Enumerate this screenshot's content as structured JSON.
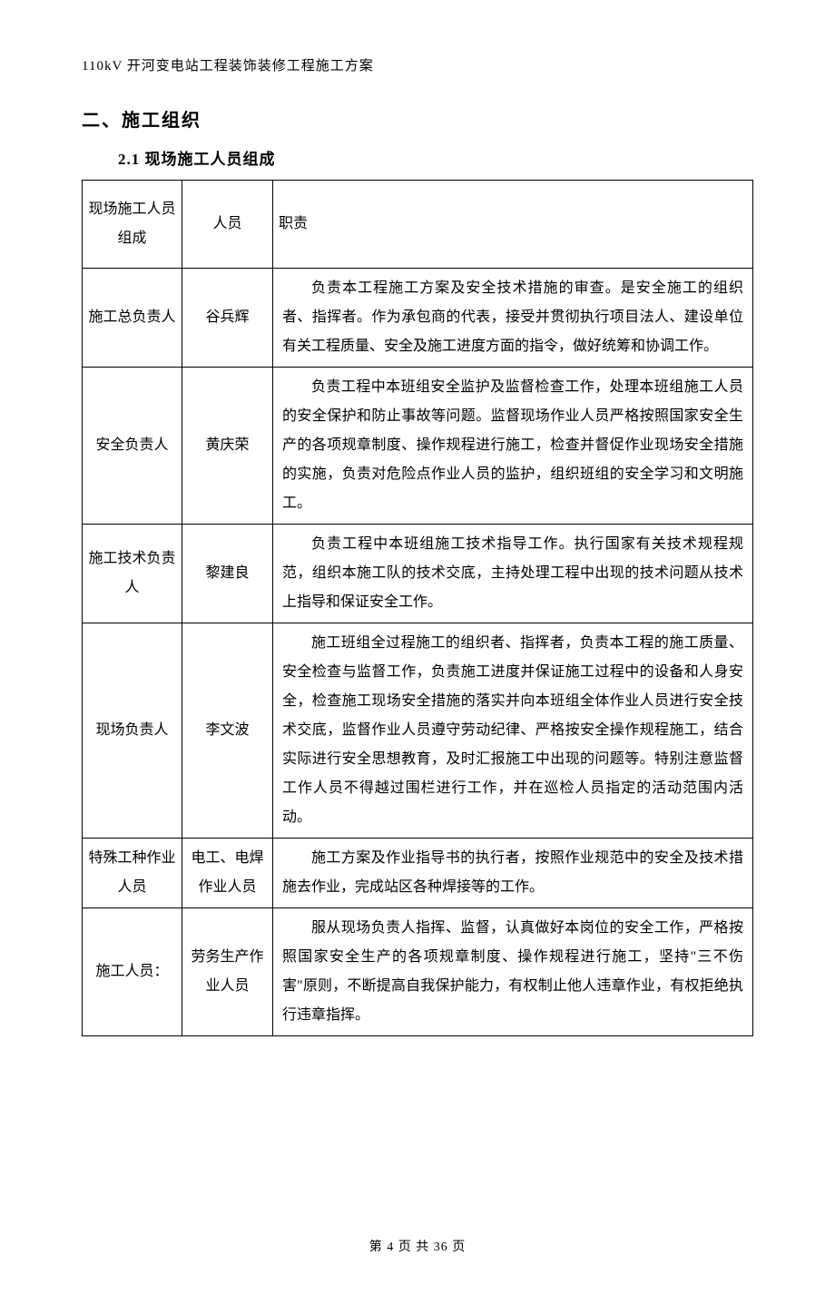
{
  "header": {
    "text": "110kV 开河变电站工程装饰装修工程施工方案"
  },
  "section": {
    "title": "二、施工组织",
    "subsection": "2.1 现场施工人员组成"
  },
  "table": {
    "headers": {
      "col1": "现场施工人员组成",
      "col2": "人员",
      "col3": "职责"
    },
    "rows": [
      {
        "role": "施工总负责人",
        "person": "谷兵辉",
        "duty": "负责本工程施工方案及安全技术措施的审查。是安全施工的组织者、指挥者。作为承包商的代表，接受并贯彻执行项目法人、建设单位有关工程质量、安全及施工进度方面的指令，做好统筹和协调工作。"
      },
      {
        "role": "安全负责人",
        "person": "黄庆荣",
        "duty": "负责工程中本班组安全监护及监督检查工作，处理本班组施工人员的安全保护和防止事故等问题。监督现场作业人员严格按照国家安全生产的各项规章制度、操作规程进行施工，检查并督促作业现场安全措施的实施，负责对危险点作业人员的监护，组织班组的安全学习和文明施工。"
      },
      {
        "role": "施工技术负责人",
        "person": "黎建良",
        "duty": "负责工程中本班组施工技术指导工作。执行国家有关技术规程规范，组织本施工队的技术交底，主持处理工程中出现的技术问题从技术上指导和保证安全工作。"
      },
      {
        "role": "现场负责人",
        "person": "李文波",
        "duty": "施工班组全过程施工的组织者、指挥者，负责本工程的施工质量、安全检查与监督工作，负责施工进度并保证施工过程中的设备和人身安全，检查施工现场安全措施的落实并向本班组全体作业人员进行安全技术交底，监督作业人员遵守劳动纪律、严格按安全操作规程施工，结合实际进行安全思想教育，及时汇报施工中出现的问题等。特别注意监督工作人员不得越过围栏进行工作，并在巡检人员指定的活动范围内活动。"
      },
      {
        "role": "特殊工种作业人员",
        "person": "电工、电焊作业人员",
        "duty": "施工方案及作业指导书的执行者，按照作业规范中的安全及技术措施去作业，完成站区各种焊接等的工作。"
      },
      {
        "role": "施工人员：",
        "person": "劳务生产作业人员",
        "duty": "服从现场负责人指挥、监督，认真做好本岗位的安全工作，严格按照国家安全生产的各项规章制度、操作规程进行施工，坚持\"三不伤害\"原则，不断提高自我保护能力，有权制止他人违章作业，有权拒绝执行违章指挥。"
      }
    ]
  },
  "footer": {
    "text": "第 4 页 共 36 页"
  }
}
